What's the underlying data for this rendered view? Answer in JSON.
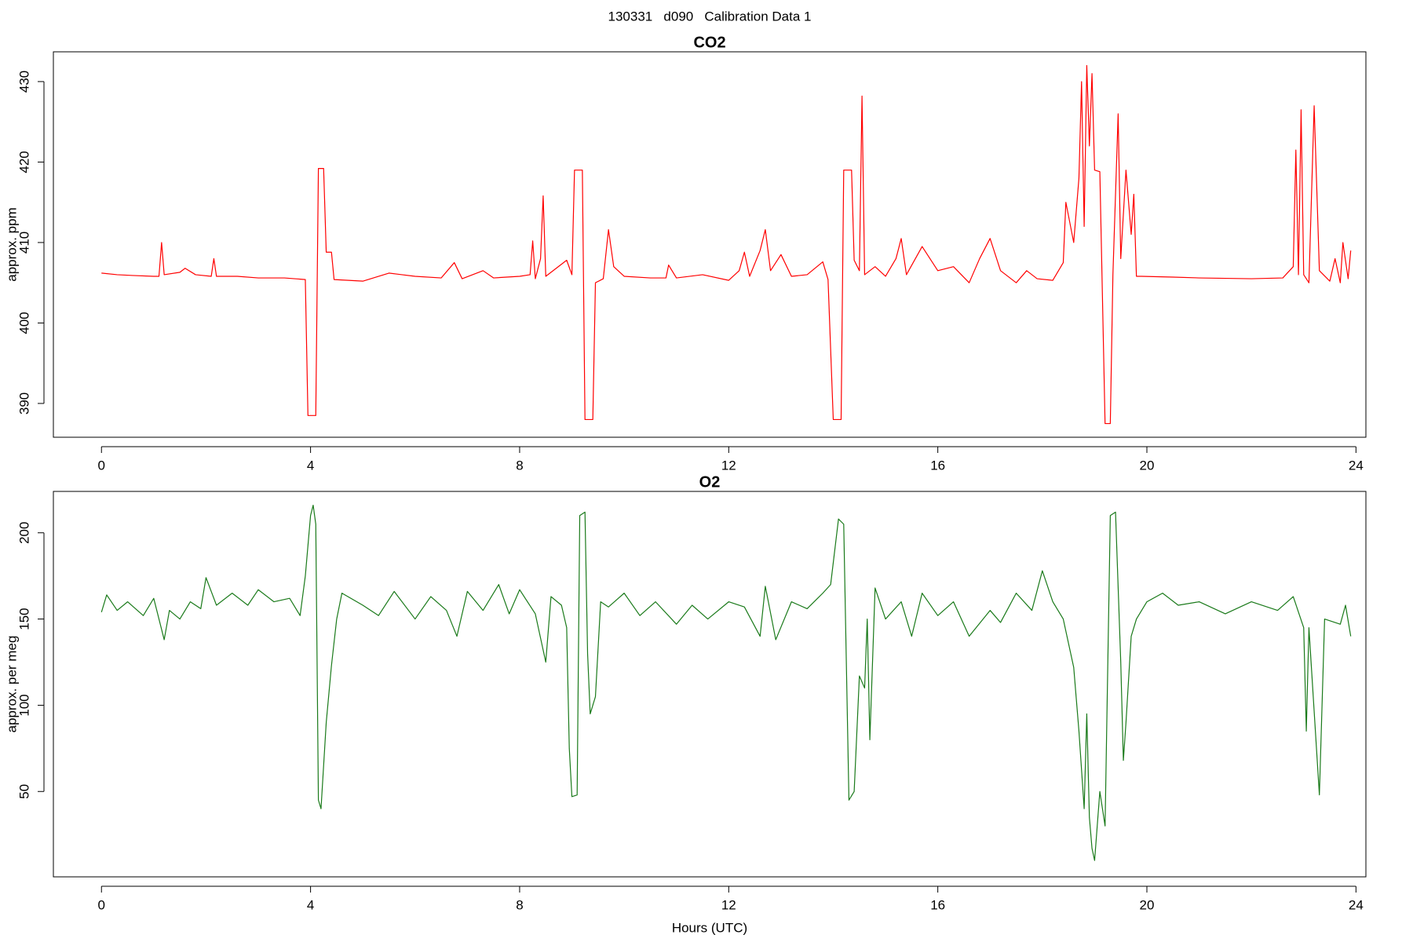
{
  "title": "130331   d090   Calibration Data 1",
  "chart_data": [
    {
      "type": "line",
      "title": "CO2",
      "y_label": "approx. ppm",
      "color": "#ff0000",
      "x": [
        0,
        0.3,
        0.6,
        1.0,
        1.1,
        1.15,
        1.2,
        1.5,
        1.6,
        1.8,
        2.1,
        2.15,
        2.2,
        2.6,
        3.0,
        3.5,
        3.9,
        3.95,
        4.1,
        4.15,
        4.25,
        4.3,
        4.4,
        4.45,
        5.0,
        5.5,
        6.0,
        6.5,
        6.75,
        6.9,
        7.3,
        7.5,
        8.0,
        8.2,
        8.25,
        8.3,
        8.4,
        8.45,
        8.5,
        8.9,
        9.0,
        9.05,
        9.2,
        9.25,
        9.4,
        9.45,
        9.6,
        9.7,
        9.8,
        10.0,
        10.5,
        10.8,
        10.85,
        11.0,
        11.5,
        12.0,
        12.2,
        12.3,
        12.4,
        12.6,
        12.7,
        12.8,
        13.0,
        13.2,
        13.5,
        13.8,
        13.9,
        14.0,
        14.15,
        14.2,
        14.35,
        14.4,
        14.5,
        14.55,
        14.6,
        14.8,
        15.0,
        15.2,
        15.3,
        15.4,
        15.7,
        16.0,
        16.3,
        16.6,
        16.8,
        17.0,
        17.2,
        17.5,
        17.7,
        17.9,
        18.2,
        18.4,
        18.45,
        18.6,
        18.7,
        18.75,
        18.8,
        18.85,
        18.9,
        18.95,
        19.0,
        19.1,
        19.2,
        19.3,
        19.35,
        19.45,
        19.5,
        19.6,
        19.7,
        19.75,
        19.8,
        19.9,
        20.5,
        21.0,
        22.0,
        22.6,
        22.8,
        22.85,
        22.9,
        22.95,
        23.0,
        23.1,
        23.2,
        23.3,
        23.5,
        23.6,
        23.7,
        23.75,
        23.85,
        23.9
      ],
      "values": [
        406.2,
        406,
        405.9,
        405.8,
        405.8,
        410,
        406,
        406.3,
        406.8,
        406,
        405.8,
        408,
        405.8,
        405.8,
        405.6,
        405.6,
        405.4,
        388.5,
        388.5,
        419.2,
        419.2,
        408.8,
        408.8,
        405.4,
        405.2,
        406.2,
        405.8,
        405.6,
        407.5,
        405.5,
        406.5,
        405.6,
        405.8,
        406,
        410.2,
        405.5,
        408,
        415.8,
        405.8,
        407.8,
        406,
        419,
        419,
        388,
        388,
        405,
        405.5,
        411.6,
        407,
        405.8,
        405.6,
        405.6,
        407.2,
        405.6,
        406,
        405.3,
        406.5,
        408.8,
        405.8,
        409,
        411.6,
        406.5,
        408.5,
        405.8,
        406,
        407.6,
        405.4,
        388,
        388,
        419,
        419,
        407.8,
        406.5,
        428.2,
        406,
        407,
        405.8,
        408,
        410.5,
        406,
        409.5,
        406.5,
        407,
        405,
        408,
        410.5,
        406.5,
        405,
        406.5,
        405.5,
        405.3,
        407.5,
        415,
        410,
        418,
        430,
        412,
        432,
        422,
        431,
        419,
        418.8,
        387.5,
        387.5,
        406,
        426,
        408,
        419,
        411,
        416,
        405.8,
        405.8,
        405.7,
        405.6,
        405.5,
        405.6,
        407,
        421.5,
        406,
        426.5,
        406,
        405,
        427,
        406.5,
        405.2,
        408,
        405,
        410,
        405.5,
        409
      ],
      "xlim": [
        -0.92,
        24.19
      ],
      "ylim": [
        385.8,
        433.7
      ],
      "xticks": [
        0,
        4,
        8,
        12,
        16,
        20,
        24
      ],
      "yticks": [
        390,
        400,
        410,
        420,
        430
      ]
    },
    {
      "type": "line",
      "title": "O2",
      "y_label": "approx. per meg",
      "x_label": "Hours (UTC)",
      "color": "#1a7a1a",
      "x": [
        0,
        0.1,
        0.3,
        0.5,
        0.8,
        1.0,
        1.2,
        1.3,
        1.5,
        1.7,
        1.9,
        2.0,
        2.2,
        2.5,
        2.8,
        3.0,
        3.3,
        3.6,
        3.8,
        3.9,
        4.0,
        4.05,
        4.1,
        4.15,
        4.2,
        4.3,
        4.4,
        4.5,
        4.6,
        5.0,
        5.3,
        5.6,
        6.0,
        6.3,
        6.6,
        6.8,
        7.0,
        7.3,
        7.6,
        7.8,
        8.0,
        8.3,
        8.5,
        8.6,
        8.8,
        8.9,
        8.95,
        9.0,
        9.1,
        9.15,
        9.25,
        9.3,
        9.35,
        9.45,
        9.55,
        9.7,
        10.0,
        10.3,
        10.6,
        11.0,
        11.3,
        11.6,
        12.0,
        12.3,
        12.6,
        12.7,
        12.9,
        13.2,
        13.5,
        13.8,
        13.95,
        14.1,
        14.2,
        14.3,
        14.4,
        14.5,
        14.6,
        14.65,
        14.7,
        14.8,
        15.0,
        15.3,
        15.5,
        15.7,
        16.0,
        16.3,
        16.6,
        17.0,
        17.2,
        17.5,
        17.8,
        18.0,
        18.2,
        18.4,
        18.6,
        18.7,
        18.8,
        18.85,
        18.9,
        18.95,
        19.0,
        19.1,
        19.2,
        19.3,
        19.4,
        19.5,
        19.55,
        19.6,
        19.7,
        19.8,
        20.0,
        20.3,
        20.6,
        21.0,
        21.5,
        22.0,
        22.5,
        22.8,
        23.0,
        23.05,
        23.1,
        23.3,
        23.4,
        23.7,
        23.8,
        23.9
      ],
      "values": [
        154,
        164,
        155,
        160,
        152,
        162,
        138,
        155,
        150,
        160,
        156,
        174,
        158,
        165,
        158,
        167,
        160,
        162,
        152,
        175,
        210,
        216,
        205,
        45,
        40,
        90,
        123,
        150,
        165,
        158,
        152,
        166,
        150,
        163,
        155,
        140,
        166,
        155,
        170,
        153,
        167,
        153,
        125,
        163,
        158,
        145,
        75,
        47,
        48,
        210,
        212,
        130,
        95,
        105,
        160,
        157,
        165,
        152,
        160,
        147,
        158,
        150,
        160,
        157,
        140,
        169,
        138,
        160,
        156,
        165,
        170,
        208,
        205,
        45,
        50,
        117,
        110,
        150,
        80,
        168,
        150,
        160,
        140,
        165,
        152,
        160,
        140,
        155,
        148,
        165,
        155,
        178,
        160,
        150,
        122,
        85,
        40,
        95,
        35,
        17,
        10,
        50,
        30,
        210,
        212,
        125,
        68,
        90,
        140,
        150,
        160,
        165,
        158,
        160,
        153,
        160,
        155,
        163,
        145,
        85,
        145,
        48,
        150,
        147,
        158,
        140
      ],
      "xlim": [
        -0.92,
        24.19
      ],
      "ylim": [
        0.5,
        224
      ],
      "xticks": [
        0,
        4,
        8,
        12,
        16,
        20,
        24
      ],
      "yticks": [
        50,
        100,
        150,
        200
      ]
    }
  ]
}
